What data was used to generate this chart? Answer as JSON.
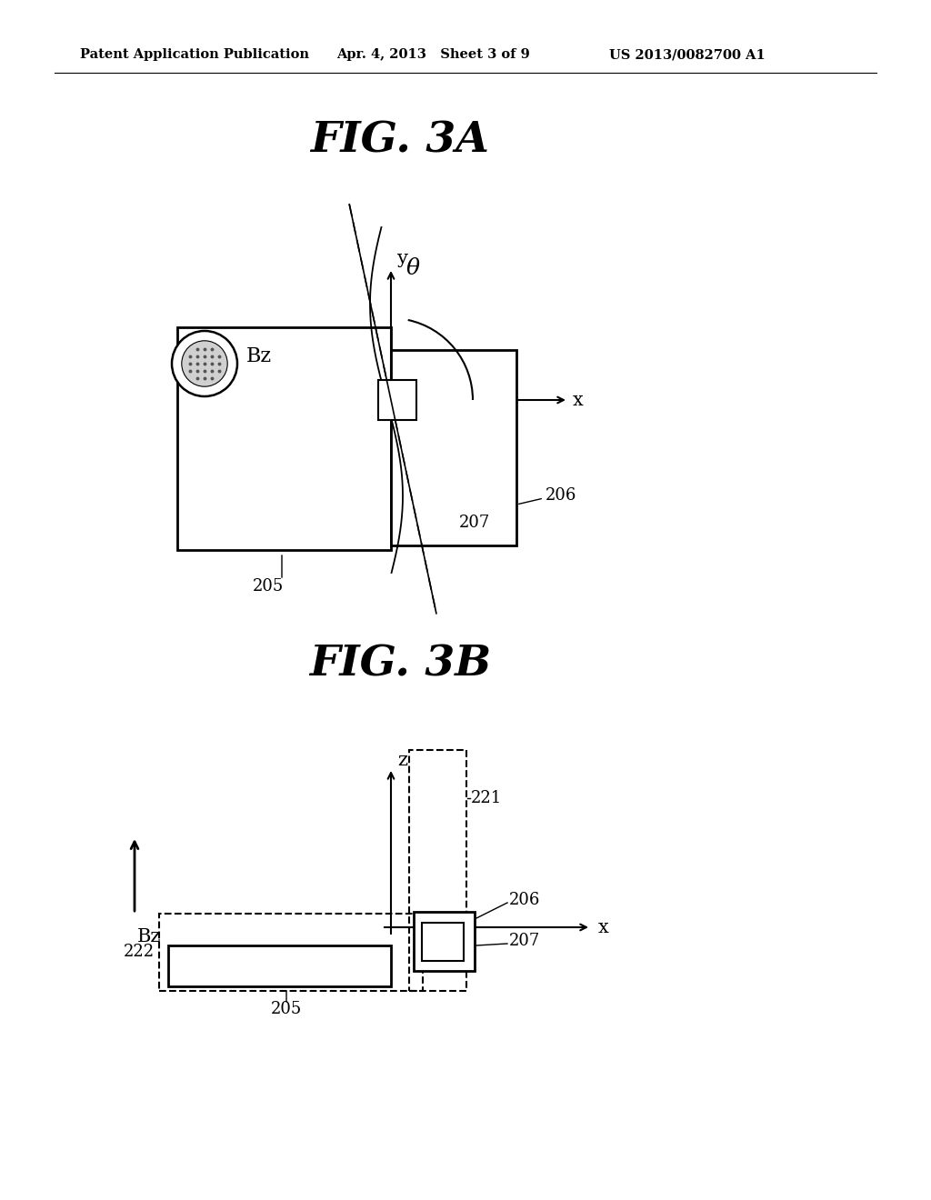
{
  "bg_color": "#ffffff",
  "header_left": "Patent Application Publication",
  "header_mid": "Apr. 4, 2013   Sheet 3 of 9",
  "header_right": "US 2013/0082700 A1",
  "fig3a_title": "FIG. 3A",
  "fig3b_title": "FIG. 3B",
  "label_205a": "205",
  "label_206a": "206",
  "label_207a": "207",
  "label_205b": "205",
  "label_206b": "206",
  "label_207b": "207",
  "label_221": "221",
  "label_222": "222",
  "label_Bz_a": "Bz",
  "label_Bz_b": "Bz",
  "label_theta": "θ",
  "label_x_a": "x",
  "label_y_a": "y",
  "label_x_b": "x",
  "label_z_b": "z"
}
